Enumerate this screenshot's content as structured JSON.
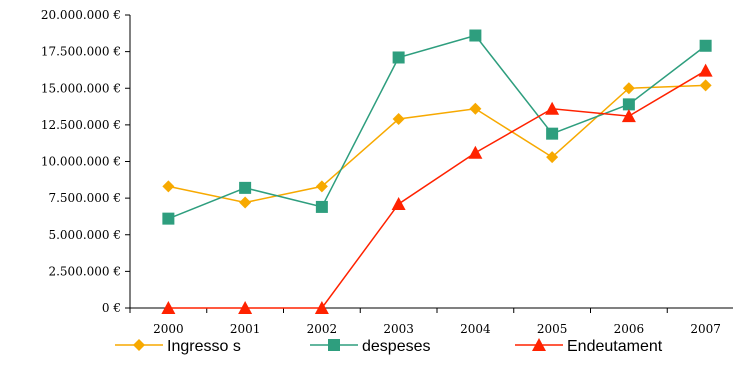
{
  "chart_data": {
    "type": "line",
    "categories": [
      "2000",
      "2001",
      "2002",
      "2003",
      "2004",
      "2005",
      "2006",
      "2007"
    ],
    "ylim": [
      0,
      20000000
    ],
    "yticks": [
      0,
      2500000,
      5000000,
      7500000,
      10000000,
      12500000,
      15000000,
      17500000,
      20000000
    ],
    "ytick_labels": [
      "0 €",
      "2.500.000 €",
      "5.000.000 €",
      "7.500.000 €",
      "10.000.000 €",
      "12.500.000 €",
      "15.000.000 €",
      "17.500.000 €",
      "20.000.000 €"
    ],
    "grid": false,
    "legend_position": "bottom",
    "series": [
      {
        "name": "Ingresso s",
        "color": "#F7A900",
        "marker": "diamond",
        "values": [
          8300000,
          7200000,
          8300000,
          12900000,
          13600000,
          10300000,
          15000000,
          15200000
        ]
      },
      {
        "name": "despeses",
        "color": "#2E9E7E",
        "marker": "square",
        "values": [
          6100000,
          8200000,
          6900000,
          17100000,
          18600000,
          11900000,
          13900000,
          17900000
        ]
      },
      {
        "name": "Endeutament",
        "color": "#FF2200",
        "marker": "triangle",
        "values": [
          0,
          0,
          0,
          7100000,
          10600000,
          13600000,
          13100000,
          16200000
        ]
      }
    ]
  }
}
